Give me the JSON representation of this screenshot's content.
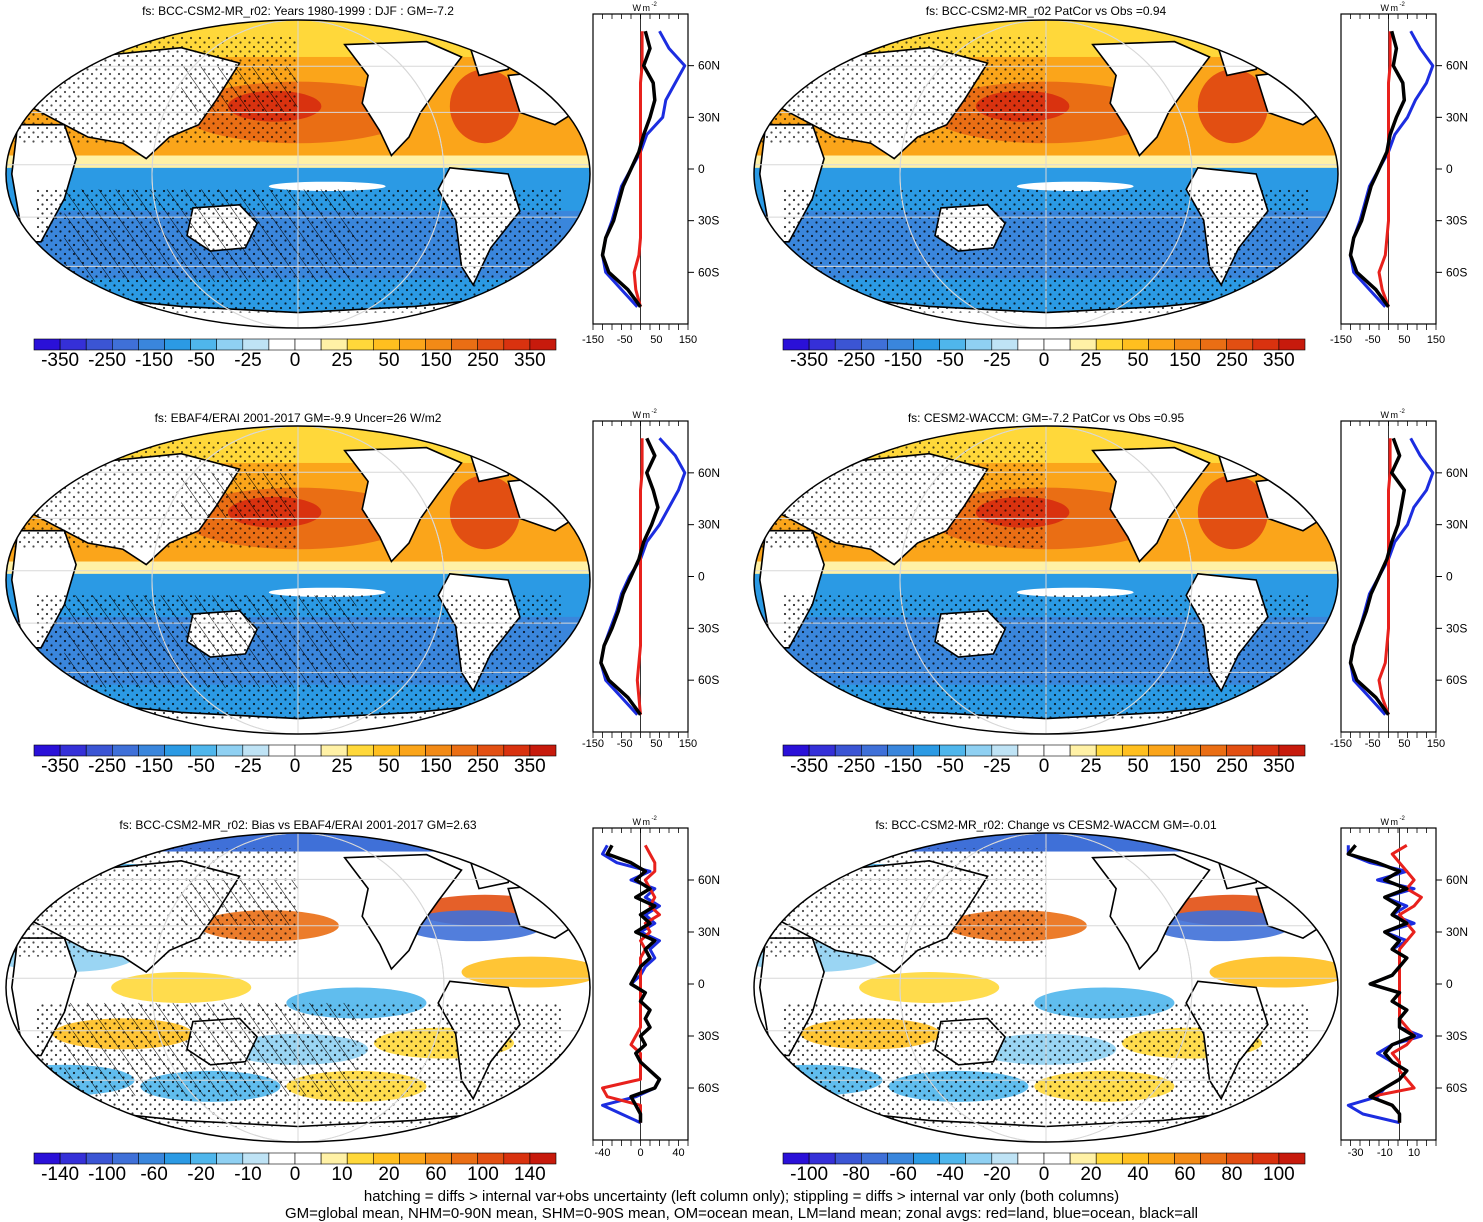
{
  "figure": {
    "footnote_line1": "hatching = diffs > internal var+obs uncertainty (left column only); stippling = diffs > internal var only (both columns)",
    "footnote_line2": "GM=global mean, NHM=0-90N mean, SHM=0-90S mean, OM=ocean mean, LM=land mean; zonal avgs: red=land, blue=ocean, black=all"
  },
  "colors": {
    "zonal_land": "#e8211c",
    "zonal_ocean": "#1c2de0",
    "zonal_all": "#000000",
    "positive_ramp": [
      "#ffffff",
      "#fff1a6",
      "#ffd83a",
      "#ffbf1f",
      "#fba51a",
      "#f28a16",
      "#ea6e14",
      "#e24f12",
      "#d9320f",
      "#c71a0c"
    ],
    "negative_ramp": [
      "#ffffff",
      "#bfe3f5",
      "#8fd0f2",
      "#4fb6ec",
      "#2b9ae4",
      "#3a86dc",
      "#3f70d8",
      "#3b55d4",
      "#3530d8",
      "#2a10d8"
    ]
  },
  "chart_data": [
    {
      "type": "heatmap",
      "panel": "top-left",
      "title": "fs: BCC-CSM2-MR_r02: Years 1980-1999 : DJF : GM=-7.2",
      "colorbar_labels": [
        "-350",
        "-250",
        "-150",
        "-50",
        "-25",
        "0",
        "25",
        "50",
        "150",
        "250",
        "350"
      ],
      "zonal_unit": "W m-2",
      "zonal_xticks": [
        "-150",
        "-50",
        "50",
        "150"
      ],
      "zonal_xlim": [
        -150,
        150
      ],
      "lat_ticks": [
        "60N",
        "30N",
        "0",
        "30S",
        "60S"
      ],
      "hatching": true,
      "zonal_series": {
        "lat": [
          80,
          70,
          60,
          50,
          40,
          30,
          20,
          10,
          0,
          -10,
          -20,
          -30,
          -40,
          -50,
          -60,
          -70,
          -80
        ],
        "all": [
          15,
          30,
          10,
          40,
          45,
          30,
          10,
          -5,
          -30,
          -55,
          -70,
          -85,
          -110,
          -120,
          -100,
          -40,
          0
        ],
        "ocean": [
          60,
          90,
          140,
          110,
          80,
          70,
          20,
          0,
          -30,
          -60,
          -75,
          -90,
          -110,
          -120,
          -110,
          -60,
          -10
        ],
        "land": [
          5,
          5,
          5,
          0,
          0,
          0,
          0,
          0,
          0,
          0,
          0,
          0,
          0,
          -5,
          -20,
          -15,
          0
        ]
      }
    },
    {
      "type": "heatmap",
      "panel": "top-right",
      "title": "fs: BCC-CSM2-MR_r02 PatCor vs Obs =0.94",
      "colorbar_labels": [
        "-350",
        "-250",
        "-150",
        "-50",
        "-25",
        "0",
        "25",
        "50",
        "150",
        "250",
        "350"
      ],
      "zonal_unit": "W m-2",
      "zonal_xticks": [
        "-150",
        "-50",
        "50",
        "150"
      ],
      "zonal_xlim": [
        -150,
        150
      ],
      "lat_ticks": [
        "60N",
        "30N",
        "0",
        "30S",
        "60S"
      ],
      "hatching": false,
      "zonal_series": {
        "lat": [
          80,
          70,
          60,
          50,
          40,
          30,
          20,
          10,
          0,
          -10,
          -20,
          -30,
          -40,
          -50,
          -60,
          -70,
          -80
        ],
        "all": [
          10,
          25,
          15,
          45,
          50,
          25,
          5,
          -5,
          -30,
          -55,
          -70,
          -85,
          -110,
          -120,
          -100,
          -40,
          0
        ],
        "ocean": [
          70,
          100,
          140,
          120,
          85,
          60,
          20,
          0,
          -30,
          -60,
          -75,
          -90,
          -110,
          -120,
          -110,
          -60,
          -10
        ],
        "land": [
          5,
          5,
          5,
          0,
          0,
          0,
          0,
          0,
          0,
          0,
          0,
          0,
          -5,
          -10,
          -30,
          -20,
          0
        ]
      }
    },
    {
      "type": "heatmap",
      "panel": "middle-left",
      "title": "fs: EBAF4/ERAI 2001-2017 GM=-9.9 Uncer=26 W/m2",
      "colorbar_labels": [
        "-350",
        "-250",
        "-150",
        "-50",
        "-25",
        "0",
        "25",
        "50",
        "150",
        "250",
        "350"
      ],
      "zonal_unit": "W m-2",
      "zonal_xticks": [
        "-150",
        "-50",
        "50",
        "150"
      ],
      "zonal_xlim": [
        -150,
        150
      ],
      "lat_ticks": [
        "60N",
        "30N",
        "0",
        "30S",
        "60S"
      ],
      "hatching": true,
      "zonal_series": {
        "lat": [
          80,
          70,
          60,
          50,
          40,
          30,
          20,
          10,
          0,
          -10,
          -20,
          -30,
          -40,
          -50,
          -60,
          -70,
          -80
        ],
        "all": [
          20,
          45,
          20,
          40,
          55,
          35,
          10,
          -5,
          -30,
          -55,
          -70,
          -90,
          -115,
          -125,
          -100,
          -40,
          0
        ],
        "ocean": [
          60,
          110,
          140,
          120,
          90,
          60,
          20,
          0,
          -35,
          -60,
          -75,
          -95,
          -115,
          -125,
          -110,
          -60,
          -10
        ],
        "land": [
          5,
          5,
          5,
          0,
          0,
          0,
          0,
          0,
          0,
          0,
          0,
          0,
          0,
          -5,
          -10,
          -5,
          0
        ]
      }
    },
    {
      "type": "heatmap",
      "panel": "middle-right",
      "title": "fs: CESM2-WACCM: GM=-7.2 PatCor vs Obs =0.95",
      "colorbar_labels": [
        "-350",
        "-250",
        "-150",
        "-50",
        "-25",
        "0",
        "25",
        "50",
        "150",
        "250",
        "350"
      ],
      "zonal_unit": "W m-2",
      "zonal_xticks": [
        "-150",
        "-50",
        "50",
        "150"
      ],
      "zonal_xlim": [
        -150,
        150
      ],
      "lat_ticks": [
        "60N",
        "30N",
        "0",
        "30S",
        "60S"
      ],
      "hatching": false,
      "zonal_series": {
        "lat": [
          80,
          70,
          60,
          50,
          40,
          30,
          20,
          10,
          0,
          -10,
          -20,
          -30,
          -40,
          -50,
          -60,
          -70,
          -80
        ],
        "all": [
          15,
          35,
          10,
          50,
          40,
          30,
          10,
          -5,
          -30,
          -55,
          -70,
          -90,
          -110,
          -120,
          -100,
          -40,
          0
        ],
        "ocean": [
          70,
          100,
          140,
          120,
          80,
          60,
          20,
          0,
          -30,
          -60,
          -75,
          -90,
          -110,
          -120,
          -110,
          -60,
          -10
        ],
        "land": [
          5,
          5,
          5,
          0,
          0,
          0,
          0,
          0,
          0,
          0,
          0,
          0,
          -5,
          -10,
          -30,
          -20,
          0
        ]
      }
    },
    {
      "type": "heatmap",
      "panel": "bottom-left",
      "title": "fs: BCC-CSM2-MR_r02: Bias vs EBAF4/ERAI 2001-2017 GM=2.63",
      "colorbar_labels": [
        "-140",
        "-100",
        "-60",
        "-20",
        "-10",
        "0",
        "10",
        "20",
        "60",
        "100",
        "140"
      ],
      "zonal_unit": "W m-2",
      "zonal_xticks": [
        "-40",
        "0",
        "40"
      ],
      "zonal_xlim": [
        -50,
        50
      ],
      "lat_ticks": [
        "60N",
        "30N",
        "0",
        "30S",
        "60S"
      ],
      "hatching": true,
      "zonal_series": {
        "lat": [
          80,
          75,
          70,
          65,
          60,
          55,
          50,
          45,
          40,
          35,
          30,
          25,
          20,
          15,
          10,
          5,
          0,
          -5,
          -10,
          -15,
          -20,
          -25,
          -30,
          -35,
          -40,
          -45,
          -50,
          -55,
          -60,
          -65,
          -70,
          -75,
          -80
        ],
        "all": [
          -30,
          -35,
          -10,
          5,
          -5,
          10,
          -5,
          15,
          0,
          10,
          -5,
          15,
          5,
          10,
          0,
          -5,
          -10,
          5,
          0,
          10,
          5,
          10,
          0,
          5,
          -5,
          0,
          10,
          20,
          15,
          -10,
          -5,
          0,
          0
        ],
        "ocean": [
          -35,
          -40,
          -25,
          10,
          -10,
          15,
          5,
          20,
          5,
          15,
          0,
          20,
          10,
          15,
          5,
          0,
          -10,
          5,
          0,
          10,
          5,
          10,
          0,
          5,
          -5,
          0,
          10,
          20,
          15,
          -5,
          -40,
          -20,
          0
        ],
        "land": [
          5,
          10,
          15,
          15,
          5,
          10,
          15,
          10,
          20,
          5,
          10,
          0,
          5,
          0,
          0,
          0,
          0,
          0,
          0,
          0,
          0,
          0,
          -5,
          -10,
          0,
          0,
          0,
          0,
          -40,
          -35,
          0,
          0,
          0
        ]
      }
    },
    {
      "type": "heatmap",
      "panel": "bottom-right",
      "title": "fs: BCC-CSM2-MR_r02: Change vs CESM2-WACCM GM=-0.01",
      "colorbar_labels": [
        "-100",
        "-80",
        "-60",
        "-40",
        "-20",
        "0",
        "20",
        "40",
        "60",
        "80",
        "100"
      ],
      "zonal_unit": "W m-2",
      "zonal_xticks": [
        "-30",
        "-10",
        "10"
      ],
      "zonal_xlim": [
        -40,
        25
      ],
      "lat_ticks": [
        "60N",
        "30N",
        "0",
        "30S",
        "60S"
      ],
      "hatching": false,
      "zonal_series": {
        "lat": [
          80,
          75,
          70,
          65,
          60,
          55,
          50,
          45,
          40,
          35,
          30,
          25,
          20,
          15,
          10,
          5,
          0,
          -5,
          -10,
          -15,
          -20,
          -25,
          -30,
          -35,
          -40,
          -45,
          -50,
          -55,
          -60,
          -65,
          -70,
          -75,
          -80
        ],
        "all": [
          -30,
          -35,
          -15,
          0,
          -10,
          5,
          -10,
          0,
          -5,
          5,
          -10,
          0,
          -5,
          5,
          0,
          -5,
          -20,
          0,
          -5,
          5,
          0,
          0,
          10,
          -5,
          -10,
          -5,
          5,
          0,
          -10,
          -20,
          -5,
          0,
          0
        ],
        "ocean": [
          -35,
          -35,
          -20,
          5,
          -15,
          10,
          -10,
          5,
          -5,
          10,
          -10,
          5,
          -5,
          5,
          0,
          -5,
          -20,
          0,
          -5,
          5,
          0,
          0,
          15,
          -5,
          -15,
          -5,
          5,
          0,
          -10,
          -15,
          -35,
          -25,
          0
        ],
        "land": [
          5,
          -5,
          0,
          5,
          10,
          5,
          15,
          10,
          0,
          5,
          10,
          5,
          0,
          0,
          0,
          0,
          0,
          0,
          0,
          0,
          0,
          5,
          10,
          5,
          -5,
          0,
          0,
          5,
          10,
          -20,
          -5,
          0,
          0
        ]
      }
    }
  ]
}
